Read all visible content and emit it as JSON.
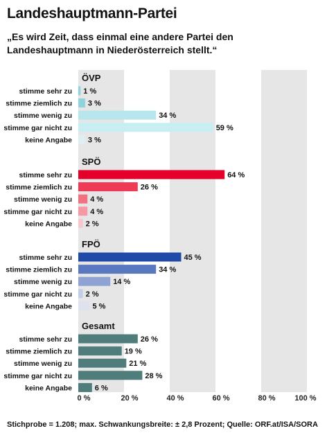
{
  "title": "Landeshauptmann-Partei",
  "subtitle": "„Es wird Zeit, dass einmal eine andere Partei den Landeshauptmann in Niederösterreich stellt.“",
  "footer": "Stichprobe = 1.208; max. Schwankungsbreite: ± 2,8 Prozent; Quelle: ORF.at/ISA/SORA",
  "chart_data": {
    "type": "bar",
    "orientation": "horizontal",
    "xlim": [
      0,
      100
    ],
    "x_ticks": [
      "0 %",
      "20 %",
      "40 %",
      "60 %",
      "80 %",
      "100 %"
    ],
    "groups": [
      {
        "name": "ÖVP",
        "categories": [
          "stimme sehr zu",
          "stimme ziemlich zu",
          "stimme wenig zu",
          "stimme gar nicht zu",
          "keine Angabe"
        ],
        "values": [
          1,
          3,
          34,
          59,
          3
        ],
        "labels": [
          "1 %",
          "3 %",
          "34 %",
          "59 %",
          "3 %"
        ],
        "colors": [
          "#8fd3de",
          "#8fd3de",
          "#b7e6ed",
          "#c8eef3",
          "#dfeef2"
        ]
      },
      {
        "name": "SPÖ",
        "categories": [
          "stimme sehr zu",
          "stimme ziemlich zu",
          "stimme wenig zu",
          "stimme gar nicht zu",
          "keine Angabe"
        ],
        "values": [
          64,
          26,
          4,
          4,
          2
        ],
        "labels": [
          "64 %",
          "26 %",
          "4 %",
          "4 %",
          "2 %"
        ],
        "colors": [
          "#e4002b",
          "#ee3a55",
          "#f2717f",
          "#f59aa5",
          "#f8c6cc"
        ]
      },
      {
        "name": "FPÖ",
        "categories": [
          "stimme sehr zu",
          "stimme ziemlich zu",
          "stimme wenig zu",
          "stimme gar nicht zu",
          "keine Angabe"
        ],
        "values": [
          45,
          34,
          14,
          2,
          5
        ],
        "labels": [
          "45 %",
          "34 %",
          "14 %",
          "2 %",
          "5 %"
        ],
        "colors": [
          "#1f4aa8",
          "#5a78bf",
          "#8ea3d4",
          "#c2cde6",
          "#dde2ee"
        ]
      },
      {
        "name": "Gesamt",
        "categories": [
          "stimme sehr zu",
          "stimme ziemlich zu",
          "stimme wenig zu",
          "stimme gar nicht zu",
          "keine Angabe"
        ],
        "values": [
          26,
          19,
          21,
          28,
          6
        ],
        "labels": [
          "26 %",
          "19 %",
          "21 %",
          "28 %",
          "6 %"
        ],
        "colors": [
          "#4f7d7c",
          "#4f7d7c",
          "#4f7d7c",
          "#4f7d7c",
          "#4f7d7c"
        ]
      }
    ],
    "grid": "alternating bands",
    "band_color": "#e6e6e6"
  }
}
